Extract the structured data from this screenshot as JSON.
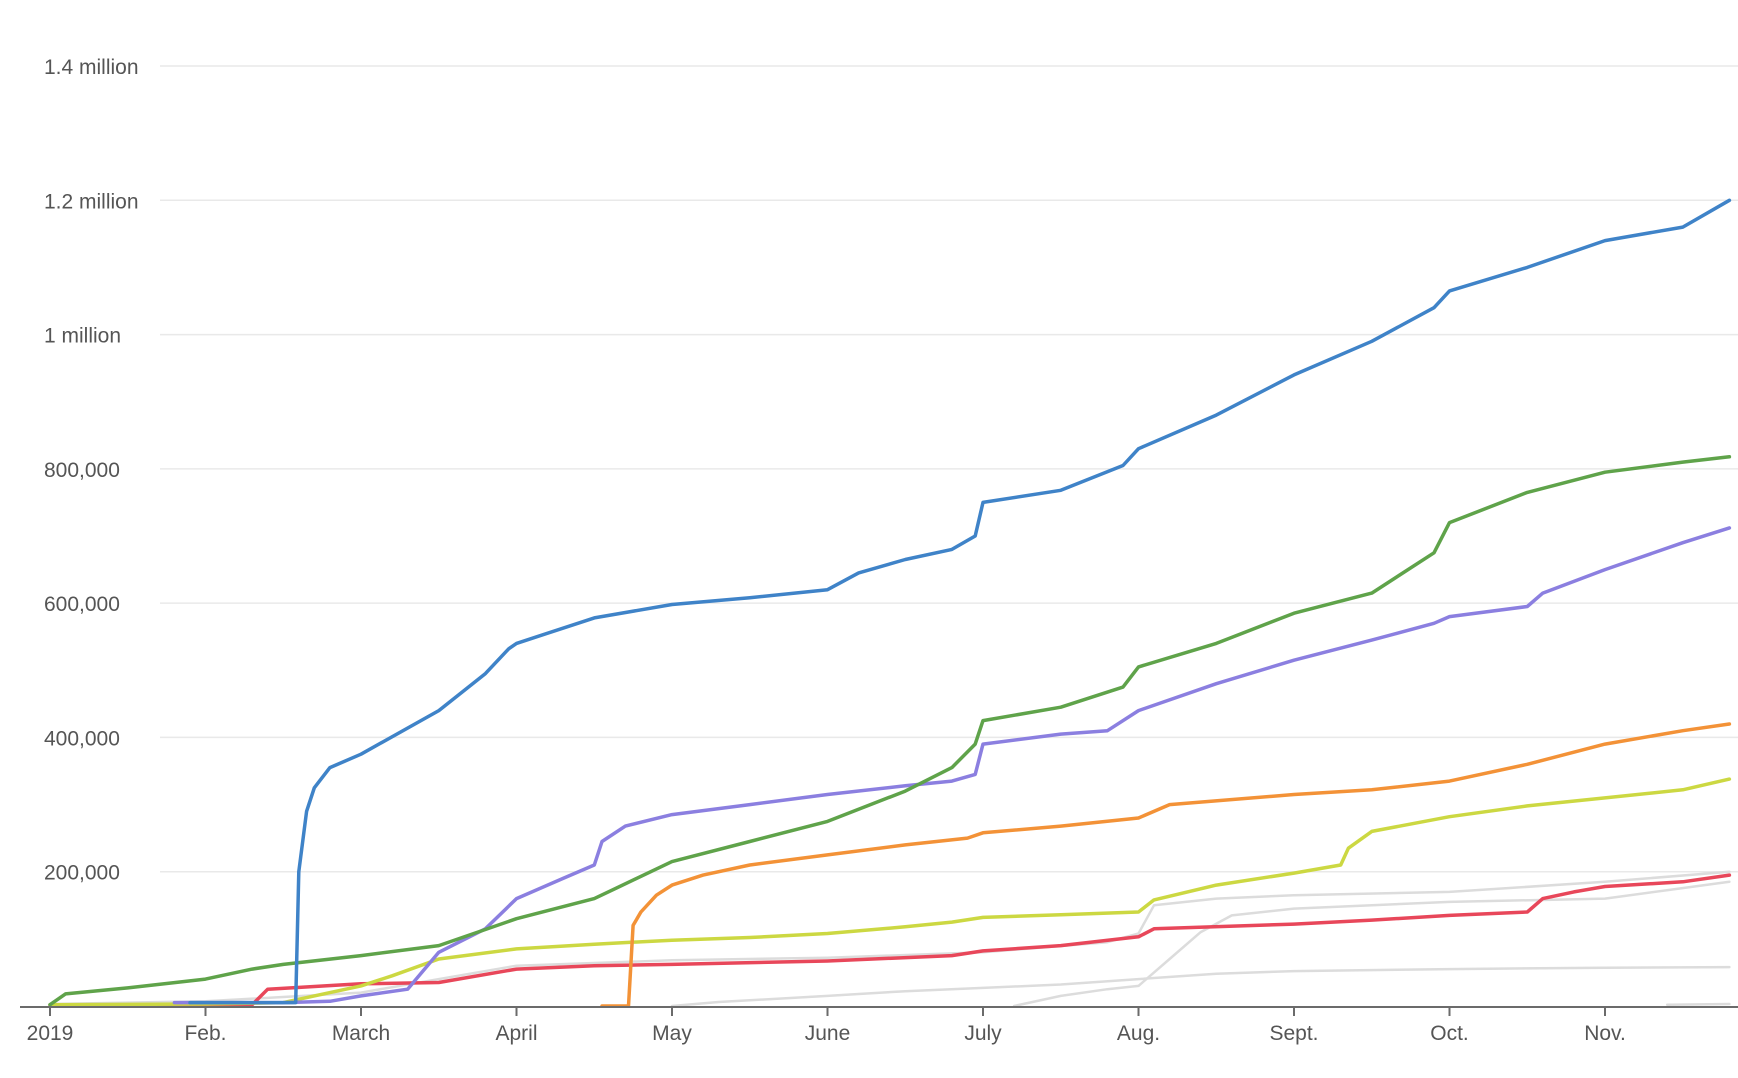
{
  "chart_data": {
    "type": "line",
    "title": "",
    "xlabel": "",
    "ylabel": "",
    "x_unit": "month",
    "x_note": "x values are month offsets from Jan. 2019 (0 = Jan. 1, 2019)",
    "xlim": [
      0,
      10.8
    ],
    "ylim": [
      0,
      1400000
    ],
    "grid": true,
    "legend": "none",
    "y_ticks": [
      {
        "value": 200000,
        "label": "200,000"
      },
      {
        "value": 400000,
        "label": "400,000"
      },
      {
        "value": 600000,
        "label": "600,000"
      },
      {
        "value": 800000,
        "label": "800,000"
      },
      {
        "value": 1000000,
        "label": "1 million"
      },
      {
        "value": 1200000,
        "label": "1.2 million"
      },
      {
        "value": 1400000,
        "label": "1.4 million"
      }
    ],
    "x_ticks": [
      {
        "value": 0,
        "label": "2019"
      },
      {
        "value": 1,
        "label": "Feb."
      },
      {
        "value": 2,
        "label": "March"
      },
      {
        "value": 3,
        "label": "April"
      },
      {
        "value": 4,
        "label": "May"
      },
      {
        "value": 5,
        "label": "June"
      },
      {
        "value": 6,
        "label": "July"
      },
      {
        "value": 7,
        "label": "Aug."
      },
      {
        "value": 8,
        "label": "Sept."
      },
      {
        "value": 9,
        "label": "Oct."
      },
      {
        "value": 10,
        "label": "Nov."
      }
    ],
    "series": [
      {
        "color": "#dcdcdc",
        "width": 2.5,
        "x": [
          4.0,
          4.3,
          5.0,
          5.5,
          6.0,
          6.5,
          7.0,
          7.5,
          8.0,
          9.0,
          10.0,
          10.8
        ],
        "y": [
          0,
          6000,
          15000,
          22000,
          27000,
          32000,
          40000,
          48000,
          52000,
          55000,
          57000,
          58000
        ]
      },
      {
        "color": "#dcdcdc",
        "width": 2.5,
        "x": [
          6.2,
          6.5,
          6.8,
          7.0,
          7.2,
          7.4,
          7.6,
          8.0,
          9.0,
          10.0,
          10.8
        ],
        "y": [
          0,
          15000,
          25000,
          30000,
          70000,
          110000,
          135000,
          145000,
          155000,
          160000,
          185000
        ]
      },
      {
        "color": "#dcdcdc",
        "width": 2.5,
        "x": [
          0.0,
          1.0,
          2.0,
          2.5,
          3.0,
          4.0,
          5.0,
          6.0,
          6.8,
          7.0,
          7.1,
          7.5,
          8.0,
          9.0,
          10.0,
          10.8
        ],
        "y": [
          3000,
          7000,
          20000,
          40000,
          60000,
          68000,
          72000,
          80000,
          95000,
          108000,
          150000,
          160000,
          165000,
          170000,
          185000,
          200000
        ]
      },
      {
        "color": "#dcdcdc",
        "width": 2.5,
        "x": [
          10.4,
          10.8
        ],
        "y": [
          2000,
          3000
        ]
      },
      {
        "color": "#e8475a",
        "width": 3.5,
        "x": [
          0.0,
          1.0,
          1.3,
          1.4,
          2.0,
          2.5,
          3.0,
          3.5,
          4.0,
          5.0,
          5.8,
          6.0,
          6.5,
          7.0,
          7.1,
          8.0,
          8.5,
          9.0,
          9.5,
          9.6,
          9.8,
          10.0,
          10.5,
          10.8
        ],
        "y": [
          0,
          0,
          2000,
          25000,
          33000,
          35000,
          55000,
          60000,
          62000,
          67000,
          75000,
          82000,
          90000,
          103000,
          115000,
          122000,
          128000,
          135000,
          140000,
          160000,
          170000,
          178000,
          185000,
          195000
        ]
      },
      {
        "color": "#ccd842",
        "width": 3.5,
        "x": [
          0.0,
          1.0,
          1.5,
          2.0,
          2.2,
          2.5,
          3.0,
          3.5,
          4.0,
          4.5,
          5.0,
          5.5,
          5.8,
          6.0,
          6.5,
          7.0,
          7.1,
          7.5,
          8.0,
          8.3,
          8.35,
          8.5,
          9.0,
          9.5,
          10.0,
          10.5,
          10.8
        ],
        "y": [
          2000,
          3000,
          5000,
          30000,
          45000,
          70000,
          85000,
          92000,
          98000,
          102000,
          108000,
          118000,
          125000,
          132000,
          136000,
          140000,
          158000,
          180000,
          198000,
          210000,
          235000,
          260000,
          282000,
          298000,
          310000,
          322000,
          338000
        ]
      },
      {
        "color": "#f39237",
        "width": 3.5,
        "x": [
          3.55,
          3.72,
          3.75,
          3.8,
          3.9,
          4.0,
          4.2,
          4.5,
          5.0,
          5.5,
          5.9,
          6.0,
          6.5,
          7.0,
          7.2,
          8.0,
          8.5,
          9.0,
          9.5,
          10.0,
          10.5,
          10.8
        ],
        "y": [
          0,
          0,
          120000,
          140000,
          165000,
          180000,
          195000,
          210000,
          225000,
          240000,
          250000,
          258000,
          268000,
          280000,
          300000,
          315000,
          322000,
          335000,
          360000,
          390000,
          410000,
          420000
        ]
      },
      {
        "color": "#8b7fe0",
        "width": 3.5,
        "x": [
          0.8,
          1.0,
          1.5,
          1.8,
          2.0,
          2.3,
          2.5,
          2.8,
          3.0,
          3.3,
          3.5,
          3.55,
          3.7,
          4.0,
          4.5,
          5.0,
          5.5,
          5.8,
          5.95,
          6.0,
          6.5,
          6.8,
          7.0,
          7.5,
          8.0,
          8.5,
          8.9,
          9.0,
          9.5,
          9.6,
          10.0,
          10.5,
          10.8
        ],
        "y": [
          5000,
          5000,
          5000,
          7000,
          15000,
          25000,
          80000,
          115000,
          160000,
          190000,
          210000,
          245000,
          268000,
          285000,
          300000,
          315000,
          328000,
          335000,
          345000,
          390000,
          405000,
          410000,
          440000,
          480000,
          515000,
          545000,
          570000,
          580000,
          595000,
          615000,
          650000,
          690000,
          712000
        ]
      },
      {
        "color": "#5fa34a",
        "width": 3.5,
        "x": [
          0.0,
          0.1,
          0.5,
          1.0,
          1.3,
          1.5,
          2.0,
          2.5,
          3.0,
          3.5,
          4.0,
          4.5,
          5.0,
          5.5,
          5.8,
          5.95,
          6.0,
          6.5,
          6.9,
          7.0,
          7.5,
          8.0,
          8.5,
          8.9,
          9.0,
          9.5,
          10.0,
          10.5,
          10.8
        ],
        "y": [
          2000,
          18000,
          27000,
          40000,
          55000,
          62000,
          75000,
          90000,
          130000,
          160000,
          215000,
          245000,
          275000,
          320000,
          355000,
          390000,
          425000,
          445000,
          475000,
          505000,
          540000,
          585000,
          615000,
          675000,
          720000,
          765000,
          795000,
          810000,
          818000
        ]
      },
      {
        "color": "#3f83c8",
        "width": 3.5,
        "x": [
          0.9,
          1.5,
          1.58,
          1.6,
          1.65,
          1.7,
          1.8,
          2.0,
          2.5,
          2.8,
          2.95,
          3.0,
          3.5,
          4.0,
          4.5,
          5.0,
          5.2,
          5.5,
          5.8,
          5.95,
          6.0,
          6.5,
          6.9,
          7.0,
          7.5,
          8.0,
          8.5,
          8.9,
          9.0,
          9.5,
          10.0,
          10.5,
          10.8
        ],
        "y": [
          5000,
          5000,
          5000,
          200000,
          290000,
          325000,
          355000,
          375000,
          440000,
          495000,
          532000,
          540000,
          578000,
          598000,
          608000,
          620000,
          645000,
          665000,
          680000,
          700000,
          750000,
          768000,
          805000,
          830000,
          880000,
          940000,
          990000,
          1040000,
          1065000,
          1100000,
          1140000,
          1160000,
          1200000
        ]
      }
    ]
  }
}
